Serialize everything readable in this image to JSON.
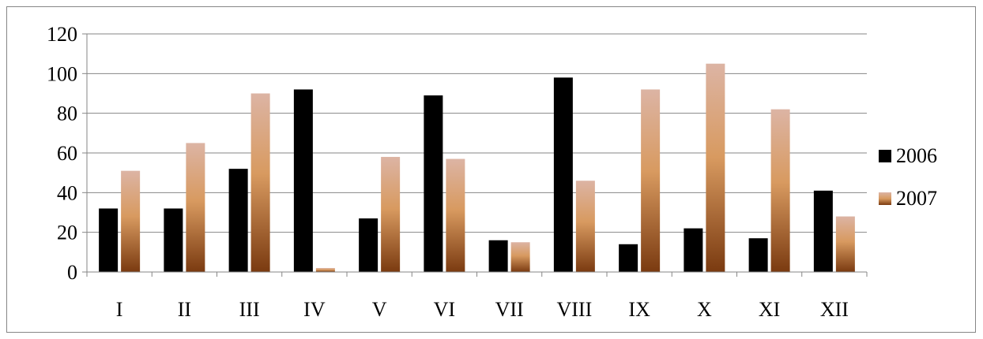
{
  "chart_data": {
    "type": "bar",
    "categories": [
      "I",
      "II",
      "III",
      "IV",
      "V",
      "VI",
      "VII",
      "VIII",
      "IX",
      "X",
      "XI",
      "XII"
    ],
    "series": [
      {
        "name": "2006",
        "color": "#000000",
        "values": [
          32,
          32,
          52,
          92,
          27,
          89,
          16,
          98,
          14,
          22,
          17,
          41
        ]
      },
      {
        "name": "2007",
        "color_top": "#dcb4a4",
        "color_mid": "#d89a60",
        "color_bottom": "#7a3a10",
        "values": [
          51,
          65,
          90,
          2,
          58,
          57,
          15,
          46,
          92,
          105,
          82,
          28
        ]
      }
    ],
    "ylim": [
      0,
      120
    ],
    "yticks": [
      0,
      20,
      40,
      60,
      80,
      100,
      120
    ],
    "grid": true,
    "legend": "right"
  }
}
